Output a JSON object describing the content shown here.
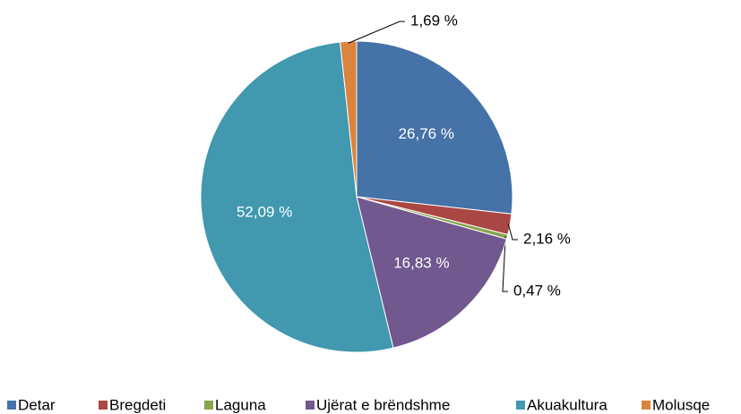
{
  "chart_data": {
    "type": "pie",
    "categories": [
      "Detar",
      "Bregdeti",
      "Laguna",
      "Ujërat e brëndshme",
      "Akuakultura",
      "Molusqe"
    ],
    "values": [
      26.76,
      2.16,
      0.47,
      16.83,
      52.09,
      1.69
    ],
    "value_labels": [
      "26,76 %",
      "2,16 %",
      "0,47 %",
      "16,83 %",
      "52,09 %",
      "1,69 %"
    ],
    "colors": [
      "#4572a7",
      "#aa4643",
      "#89a54e",
      "#71588f",
      "#4198af",
      "#db843d"
    ],
    "legend": "bottom"
  }
}
